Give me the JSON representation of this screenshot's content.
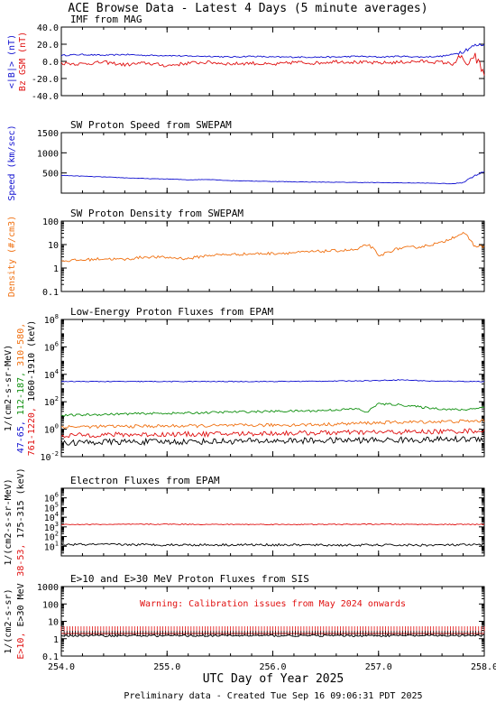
{
  "page": {
    "title": "ACE Browse Data - Latest 4 Days (5 minute averages)",
    "x_axis_label": "UTC Day of Year 2025",
    "footer": "Preliminary data - Created Tue Sep 16 09:06:31 PDT 2025"
  },
  "colors": {
    "blue": "#1010d0",
    "red": "#e01010",
    "green": "#109010",
    "orange": "#f07010",
    "black": "#000000"
  },
  "chart_data": [
    {
      "type": "line",
      "title": "IMF from MAG",
      "y_labels": [
        {
          "text": "<|B|> (nT)",
          "color": "#1010d0"
        },
        {
          "text": "Bz GSM (nT)",
          "color": "#e01010"
        }
      ],
      "x_ticks": [
        "254.0",
        "255.0",
        "256.0",
        "257.0",
        "258.0"
      ],
      "xlim": [
        254.0,
        258.0
      ],
      "yscale": "linear",
      "ylim": [
        -40,
        40
      ],
      "y_ticks": [
        "-40.0",
        "-20.0",
        "0.0",
        "20.0",
        "40.0"
      ],
      "series": [
        {
          "name": "<|B|>",
          "color": "#1010d0",
          "x": [
            254.0,
            254.2,
            254.4,
            254.6,
            254.8,
            255.0,
            255.2,
            255.4,
            255.6,
            255.8,
            256.0,
            256.2,
            256.4,
            256.6,
            256.8,
            257.0,
            257.2,
            257.4,
            257.6,
            257.7,
            257.8,
            257.85,
            257.9,
            258.0
          ],
          "values": [
            7,
            8,
            7,
            8,
            7,
            7,
            6,
            6,
            5,
            6,
            5,
            5,
            5,
            5,
            6,
            5,
            6,
            5,
            6,
            8,
            12,
            15,
            18,
            20
          ]
        },
        {
          "name": "Bz GSM",
          "color": "#e01010",
          "x": [
            254.0,
            254.2,
            254.4,
            254.6,
            254.8,
            255.0,
            255.2,
            255.4,
            255.6,
            255.8,
            256.0,
            256.2,
            256.4,
            256.6,
            256.8,
            257.0,
            257.2,
            257.4,
            257.6,
            257.7,
            257.8,
            257.85,
            257.9,
            258.0
          ],
          "values": [
            -2,
            -3,
            -1,
            -4,
            -2,
            -5,
            -2,
            -1,
            -3,
            -2,
            -4,
            -1,
            -2,
            0,
            -1,
            -2,
            -1,
            0,
            -1,
            -3,
            5,
            -10,
            8,
            -15
          ]
        }
      ]
    },
    {
      "type": "line",
      "title": "SW Proton Speed from SWEPAM",
      "y_labels": [
        {
          "text": "Speed (km/sec)",
          "color": "#1010d0"
        }
      ],
      "x_ticks": [
        "254.0",
        "255.0",
        "256.0",
        "257.0",
        "258.0"
      ],
      "xlim": [
        254.0,
        258.0
      ],
      "yscale": "linear",
      "ylim": [
        0,
        1500
      ],
      "y_ticks": [
        "500",
        "1000",
        "1500"
      ],
      "series": [
        {
          "name": "Speed",
          "color": "#1010d0",
          "x": [
            254.0,
            254.2,
            254.4,
            254.6,
            254.8,
            255.0,
            255.2,
            255.4,
            255.6,
            255.8,
            256.0,
            256.2,
            256.4,
            256.6,
            256.8,
            257.0,
            257.2,
            257.4,
            257.6,
            257.7,
            257.8,
            257.9,
            258.0
          ],
          "values": [
            440,
            420,
            400,
            380,
            360,
            350,
            330,
            340,
            310,
            300,
            290,
            280,
            275,
            270,
            265,
            260,
            255,
            250,
            240,
            230,
            270,
            420,
            540
          ]
        }
      ]
    },
    {
      "type": "line",
      "title": "SW Proton Density from SWEPAM",
      "y_labels": [
        {
          "text": "Density (#/cm3)",
          "color": "#f07010"
        }
      ],
      "x_ticks": [
        "254.0",
        "255.0",
        "256.0",
        "257.0",
        "258.0"
      ],
      "xlim": [
        254.0,
        258.0
      ],
      "yscale": "log",
      "ylim": [
        0.1,
        100
      ],
      "y_ticks": [
        "0.1",
        "1",
        "10",
        "100"
      ],
      "series": [
        {
          "name": "Density",
          "color": "#f07010",
          "x": [
            254.0,
            254.2,
            254.4,
            254.6,
            254.8,
            255.0,
            255.2,
            255.4,
            255.6,
            255.8,
            256.0,
            256.2,
            256.4,
            256.6,
            256.8,
            256.9,
            257.0,
            257.2,
            257.4,
            257.6,
            257.7,
            257.8,
            257.9,
            258.0
          ],
          "values": [
            2,
            2.2,
            2.5,
            2.3,
            3,
            2.8,
            2.5,
            3.5,
            3.8,
            4,
            4.2,
            4.5,
            5,
            5.5,
            6,
            10,
            3,
            7,
            8,
            12,
            20,
            30,
            9,
            8
          ]
        }
      ]
    },
    {
      "type": "line",
      "title": "Low-Energy Proton Fluxes from EPAM",
      "y_labels": [
        {
          "text": "1/(cm2-s-sr-MeV)",
          "color": "#000000"
        },
        {
          "text": "47-65,",
          "color": "#1010d0"
        },
        {
          "text": "112-187,",
          "color": "#109010"
        },
        {
          "text": "310-580,",
          "color": "#f07010"
        },
        {
          "text": "761-1220,",
          "color": "#e01010"
        },
        {
          "text": "1060-1910 (keV)",
          "color": "#000000"
        }
      ],
      "x_ticks": [
        "254.0",
        "255.0",
        "256.0",
        "257.0",
        "258.0"
      ],
      "xlim": [
        254.0,
        258.0
      ],
      "yscale": "log",
      "ylim": [
        0.01,
        100000000
      ],
      "y_ticks": [
        "10^-2",
        "10^0",
        "10^2",
        "10^4",
        "10^6",
        "10^8"
      ],
      "series": [
        {
          "name": "47-65",
          "color": "#1010d0",
          "x": [
            254.0,
            254.5,
            255.0,
            255.5,
            256.0,
            256.5,
            257.0,
            257.2,
            257.5,
            258.0
          ],
          "values": [
            3000,
            3000,
            3000,
            3000,
            3000,
            3200,
            3500,
            4000,
            3200,
            3000
          ]
        },
        {
          "name": "112-187",
          "color": "#109010",
          "x": [
            254.0,
            254.4,
            254.8,
            255.2,
            255.6,
            256.0,
            256.4,
            256.8,
            256.9,
            257.0,
            257.2,
            257.4,
            257.6,
            257.8,
            258.0
          ],
          "values": [
            10,
            12,
            14,
            15,
            18,
            20,
            22,
            30,
            15,
            70,
            60,
            40,
            30,
            25,
            40
          ]
        },
        {
          "name": "310-580",
          "color": "#f07010",
          "x": [
            254.0,
            254.5,
            255.0,
            255.5,
            256.0,
            256.5,
            257.0,
            257.5,
            258.0
          ],
          "values": [
            1.5,
            1.6,
            1.7,
            1.8,
            2,
            2.2,
            3,
            3.5,
            4
          ]
        },
        {
          "name": "761-1220",
          "color": "#e01010",
          "x": [
            254.0,
            254.5,
            255.0,
            255.5,
            256.0,
            256.5,
            257.0,
            257.5,
            258.0
          ],
          "values": [
            0.35,
            0.4,
            0.42,
            0.45,
            0.5,
            0.55,
            0.6,
            0.65,
            0.8
          ]
        },
        {
          "name": "1060-1910",
          "color": "#000000",
          "x": [
            254.0,
            254.5,
            255.0,
            255.5,
            256.0,
            256.5,
            257.0,
            257.5,
            258.0
          ],
          "values": [
            0.1,
            0.12,
            0.12,
            0.13,
            0.14,
            0.15,
            0.16,
            0.17,
            0.2
          ]
        }
      ]
    },
    {
      "type": "line",
      "title": "Electron Fluxes from EPAM",
      "y_labels": [
        {
          "text": "1/(cm2-s-sr-MeV)",
          "color": "#000000"
        },
        {
          "text": "38-53,",
          "color": "#e01010"
        },
        {
          "text": "175-315 (keV)",
          "color": "#000000"
        }
      ],
      "x_ticks": [
        "254.0",
        "255.0",
        "256.0",
        "257.0",
        "258.0"
      ],
      "xlim": [
        254.0,
        258.0
      ],
      "yscale": "log",
      "ylim": [
        1,
        10000000
      ],
      "y_ticks": [
        "10^1",
        "10^2",
        "10^3",
        "10^4",
        "10^5",
        "10^6"
      ],
      "series": [
        {
          "name": "38-53",
          "color": "#e01010",
          "x": [
            254.0,
            254.5,
            255.0,
            255.5,
            256.0,
            256.5,
            257.0,
            257.5,
            258.0
          ],
          "values": [
            1800,
            1800,
            1900,
            1800,
            1800,
            1800,
            1900,
            1800,
            1800
          ]
        },
        {
          "name": "175-315",
          "color": "#000000",
          "x": [
            254.0,
            254.5,
            255.0,
            255.5,
            256.0,
            256.5,
            257.0,
            257.5,
            258.0
          ],
          "values": [
            15,
            15,
            14,
            14,
            14,
            13,
            13,
            13,
            14
          ]
        }
      ]
    },
    {
      "type": "line",
      "title": "E>10 and E>30 MeV Proton Fluxes from SIS",
      "annotation": "Warning: Calibration issues from May 2024 onwards",
      "y_labels": [
        {
          "text": "1/(cm2-s-sr)",
          "color": "#000000"
        },
        {
          "text": "E>10,",
          "color": "#e01010"
        },
        {
          "text": "E>30 MeV",
          "color": "#000000"
        }
      ],
      "x_ticks": [
        "254.0",
        "255.0",
        "256.0",
        "257.0",
        "258.0"
      ],
      "xlim": [
        254.0,
        258.0
      ],
      "yscale": "log",
      "ylim": [
        0.1,
        1000
      ],
      "y_ticks": [
        "0.1",
        "1",
        "10",
        "100",
        "1000"
      ],
      "series": [
        {
          "name": "E>10",
          "color": "#e01010",
          "x": [
            254.0,
            255.0,
            256.0,
            257.0,
            258.0
          ],
          "values": [
            2,
            2,
            2,
            2,
            2
          ]
        },
        {
          "name": "E>30",
          "color": "#000000",
          "x": [
            254.0,
            255.0,
            256.0,
            257.0,
            258.0
          ],
          "values": [
            1.5,
            1.5,
            1.5,
            1.5,
            1.5
          ]
        }
      ]
    }
  ]
}
